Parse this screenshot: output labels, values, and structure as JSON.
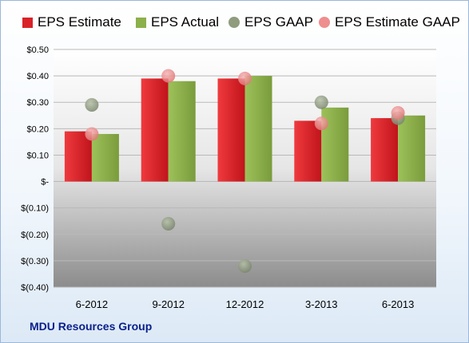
{
  "chart_data": {
    "type": "bar",
    "categories": [
      "6-2012",
      "9-2012",
      "12-2012",
      "3-2013",
      "6-2013"
    ],
    "series": [
      {
        "name": "EPS Estimate",
        "kind": "bar",
        "color": "#d92228",
        "values": [
          0.19,
          0.39,
          0.39,
          0.23,
          0.24
        ]
      },
      {
        "name": "EPS Actual",
        "kind": "bar",
        "color": "#8cb04a",
        "values": [
          0.18,
          0.38,
          0.4,
          0.28,
          0.25
        ]
      },
      {
        "name": "EPS GAAP",
        "kind": "marker",
        "color": "#8f9c7e",
        "values": [
          0.29,
          -0.16,
          -0.32,
          0.3,
          0.24
        ]
      },
      {
        "name": "EPS Estimate GAAP",
        "kind": "marker",
        "color": "#ee8e8e",
        "values": [
          0.18,
          0.4,
          0.39,
          0.22,
          0.26
        ]
      }
    ],
    "ylim": [
      -0.4,
      0.5
    ],
    "yticks": [
      0.5,
      0.4,
      0.3,
      0.2,
      0.1,
      0.0,
      -0.1,
      -0.2,
      -0.3,
      -0.4
    ],
    "ytick_labels": [
      "$0.50",
      "$0.40",
      "$0.30",
      "$0.20",
      "$0.10",
      "$-",
      "$(0.10)",
      "$(0.20)",
      "$(0.30)",
      "$(0.40)"
    ],
    "grid": true,
    "legend_position": "top",
    "xlabel": "",
    "ylabel": "",
    "title": ""
  },
  "legend": {
    "items": [
      "EPS Estimate",
      "EPS Actual",
      "EPS GAAP",
      "EPS Estimate GAAP"
    ]
  },
  "footer": {
    "company": "MDU Resources Group"
  }
}
